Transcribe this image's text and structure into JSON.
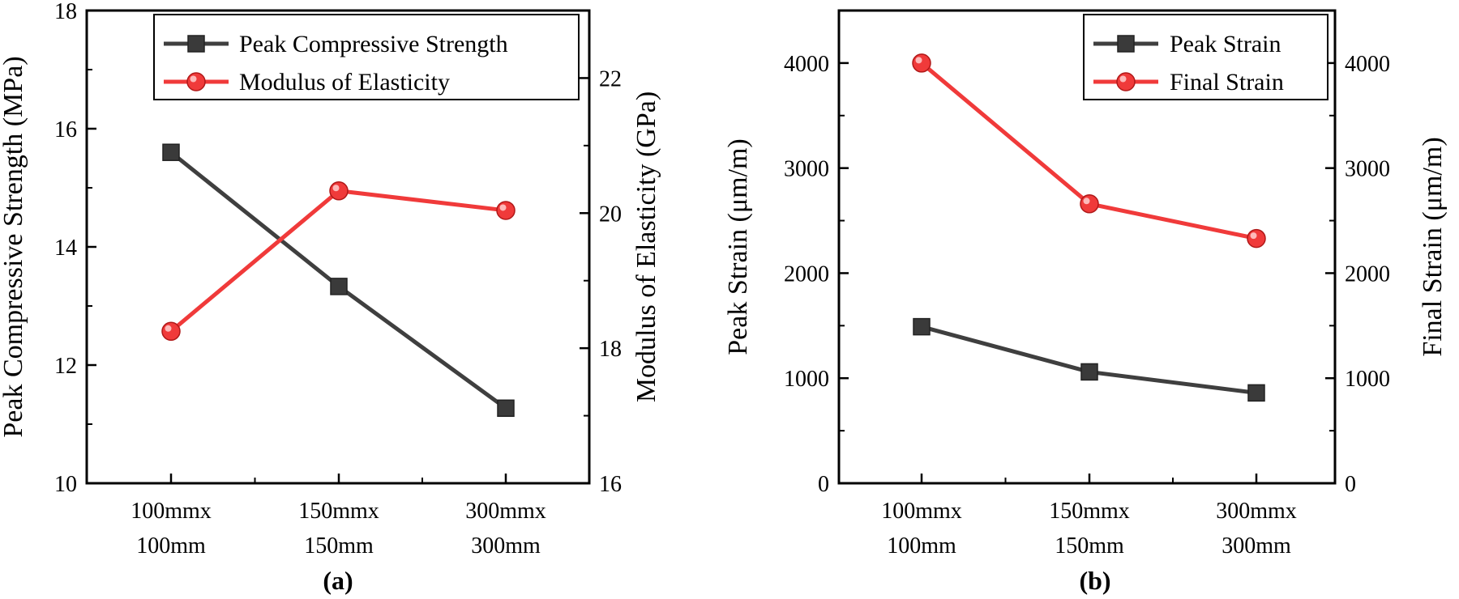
{
  "chart_data": [
    {
      "type": "line",
      "panel_label": "(a)",
      "categories": [
        [
          "100mmx",
          "100mm"
        ],
        [
          "150mmx",
          "150mm"
        ],
        [
          "300mmx",
          "300mm"
        ]
      ],
      "left_axis": {
        "label": "Peak Compressive Strength (MPa)",
        "ylim": [
          10,
          18
        ],
        "ticks": [
          "10",
          "12",
          "14",
          "16",
          "18"
        ],
        "tick_values": [
          10,
          12,
          14,
          16,
          18
        ]
      },
      "right_axis": {
        "label": "Modulus of Elasticity (GPa)",
        "ylim": [
          16,
          23
        ],
        "ticks": [
          "16",
          "18",
          "20",
          "22"
        ],
        "tick_values": [
          16,
          18,
          20,
          22
        ]
      },
      "series": [
        {
          "name": "Peak Compressive Strength",
          "axis": "left",
          "marker": "square",
          "color": "#3f3f3f",
          "values": [
            15.6,
            13.33,
            11.27
          ]
        },
        {
          "name": "Modulus of Elasticity",
          "axis": "right",
          "marker": "circle",
          "color": "#f03a3a",
          "values": [
            18.25,
            20.33,
            20.04
          ]
        }
      ],
      "legend": "top-right"
    },
    {
      "type": "line",
      "panel_label": "(b)",
      "categories": [
        [
          "100mmx",
          "100mm"
        ],
        [
          "150mmx",
          "150mm"
        ],
        [
          "300mmx",
          "300mm"
        ]
      ],
      "left_axis": {
        "label": "Peak Strain (μm/m)",
        "ylim": [
          0,
          4500
        ],
        "ticks": [
          "0",
          "1000",
          "2000",
          "3000",
          "4000"
        ],
        "tick_values": [
          0,
          1000,
          2000,
          3000,
          4000
        ]
      },
      "right_axis": {
        "label": "Final Strain (μm/m)",
        "ylim": [
          0,
          4500
        ],
        "ticks": [
          "0",
          "1000",
          "2000",
          "3000",
          "4000"
        ],
        "tick_values": [
          0,
          1000,
          2000,
          3000,
          4000
        ]
      },
      "series": [
        {
          "name": "Peak Strain",
          "axis": "left",
          "marker": "square",
          "color": "#3f3f3f",
          "values": [
            1490,
            1060,
            860
          ]
        },
        {
          "name": "Final Strain",
          "axis": "right",
          "marker": "circle",
          "color": "#f03a3a",
          "values": [
            4000,
            2660,
            2330
          ]
        }
      ],
      "legend": "top-right"
    }
  ]
}
